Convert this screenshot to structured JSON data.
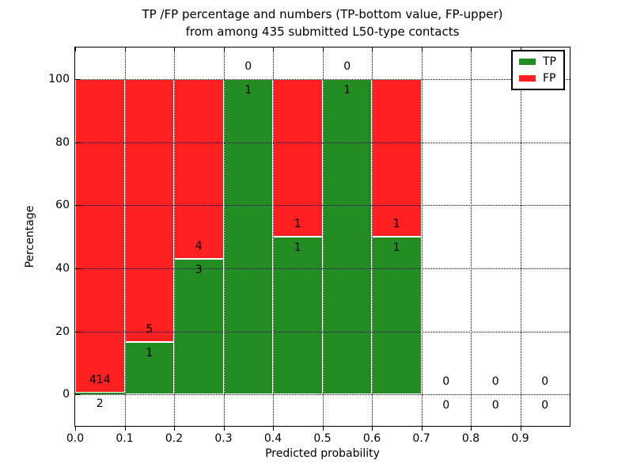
{
  "chart_data": {
    "type": "bar",
    "stacked": true,
    "title": "TP /FP percentage and numbers (TP-bottom value, FP-upper)",
    "subtitle": "from among 435 submitted L50-type contacts",
    "xlabel": "Predicted probability",
    "ylabel": "Percentage",
    "xlim": [
      0.0,
      1.0
    ],
    "ylim": [
      -10,
      110
    ],
    "grid": "dotted black, both axes, drawn on top of bars",
    "legend_position": "upper right",
    "total_contacts": 435,
    "colors": {
      "tp": "#228B22",
      "fp": "#ff2121",
      "bar_edge": "#ffffff"
    },
    "legend": {
      "entries": [
        {
          "label": "TP",
          "color": "#228B22"
        },
        {
          "label": "FP",
          "color": "#ff2121"
        }
      ]
    },
    "xticks": [
      {
        "v": 0.0,
        "label": "0.0"
      },
      {
        "v": 0.1,
        "label": "0.1"
      },
      {
        "v": 0.2,
        "label": "0.2"
      },
      {
        "v": 0.3,
        "label": "0.3"
      },
      {
        "v": 0.4,
        "label": "0.4"
      },
      {
        "v": 0.5,
        "label": "0.5"
      },
      {
        "v": 0.6,
        "label": "0.6"
      },
      {
        "v": 0.7,
        "label": "0.7"
      },
      {
        "v": 0.8,
        "label": "0.8"
      },
      {
        "v": 0.9,
        "label": "0.9"
      }
    ],
    "yticks": [
      {
        "v": 0,
        "label": "0"
      },
      {
        "v": 20,
        "label": "20"
      },
      {
        "v": 40,
        "label": "40"
      },
      {
        "v": 60,
        "label": "60"
      },
      {
        "v": 80,
        "label": "80"
      },
      {
        "v": 100,
        "label": "100"
      }
    ],
    "bins": [
      {
        "x0": 0.0,
        "x1": 0.1,
        "tp": 2,
        "fp": 414
      },
      {
        "x0": 0.1,
        "x1": 0.2,
        "tp": 1,
        "fp": 5
      },
      {
        "x0": 0.2,
        "x1": 0.3,
        "tp": 3,
        "fp": 4
      },
      {
        "x0": 0.3,
        "x1": 0.4,
        "tp": 1,
        "fp": 0
      },
      {
        "x0": 0.4,
        "x1": 0.5,
        "tp": 1,
        "fp": 1
      },
      {
        "x0": 0.5,
        "x1": 0.6,
        "tp": 1,
        "fp": 0
      },
      {
        "x0": 0.6,
        "x1": 0.7,
        "tp": 1,
        "fp": 1
      },
      {
        "x0": 0.7,
        "x1": 0.8,
        "tp": 0,
        "fp": 0
      },
      {
        "x0": 0.8,
        "x1": 0.9,
        "tp": 0,
        "fp": 0
      },
      {
        "x0": 0.9,
        "x1": 1.0,
        "tp": 0,
        "fp": 0
      }
    ]
  }
}
